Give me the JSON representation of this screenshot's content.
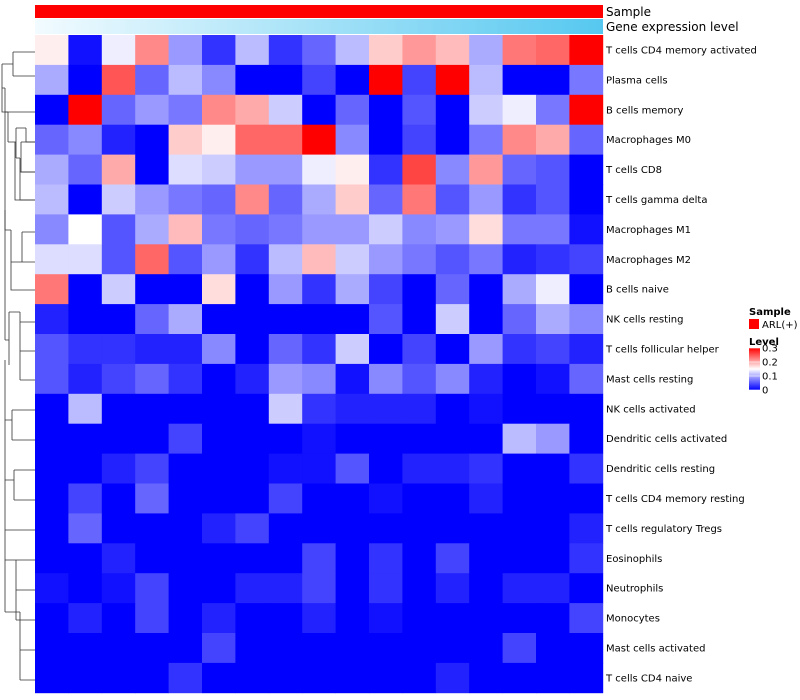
{
  "chart_data": {
    "type": "heatmap",
    "annotations": {
      "sample_label": "Sample",
      "expression_label": "Gene expression level",
      "sample_color": "#ff0000",
      "expression_gradient": [
        "#f2fbff",
        "#56c8f0"
      ]
    },
    "rows": [
      "T cells CD4 memory activated",
      "Plasma cells",
      "B cells memory",
      "Macrophages M0",
      "T cells CD8",
      "T cells gamma delta",
      "Macrophages M1",
      "Macrophages M2",
      "B cells naive",
      "NK cells resting",
      "T cells follicular helper",
      "Mast cells resting",
      "NK cells activated",
      "Dendritic cells activated",
      "Dendritic cells resting",
      "T cells CD4 memory resting",
      "T cells regulatory  Tregs",
      "Eosinophils",
      "Neutrophils",
      "Monocytes",
      "Mast cells activated",
      "T cells CD4 naive"
    ],
    "values": [
      [
        0.16,
        0.01,
        0.14,
        0.22,
        0.09,
        0.03,
        0.11,
        0.03,
        0.06,
        0.11,
        0.18,
        0.21,
        0.19,
        0.1,
        0.23,
        0.24,
        0.3
      ],
      [
        0.1,
        0.0,
        0.25,
        0.06,
        0.11,
        0.08,
        0.0,
        0.0,
        0.04,
        0.0,
        0.3,
        0.04,
        0.3,
        0.11,
        0.0,
        0.0,
        0.07
      ],
      [
        0.0,
        0.3,
        0.06,
        0.09,
        0.07,
        0.22,
        0.2,
        0.12,
        0.0,
        0.06,
        0.0,
        0.05,
        0.0,
        0.12,
        0.14,
        0.07,
        0.3
      ],
      [
        0.06,
        0.08,
        0.02,
        0.0,
        0.18,
        0.16,
        0.24,
        0.24,
        0.3,
        0.08,
        0.0,
        0.04,
        0.0,
        0.07,
        0.22,
        0.2,
        0.06
      ],
      [
        0.1,
        0.06,
        0.2,
        0.0,
        0.13,
        0.12,
        0.09,
        0.09,
        0.14,
        0.16,
        0.03,
        0.26,
        0.08,
        0.21,
        0.06,
        0.05,
        0.0
      ],
      [
        0.11,
        0.0,
        0.12,
        0.09,
        0.07,
        0.06,
        0.22,
        0.06,
        0.1,
        0.18,
        0.06,
        0.23,
        0.05,
        0.09,
        0.03,
        0.05,
        0.0
      ],
      [
        0.08,
        0.15,
        0.05,
        0.1,
        0.19,
        0.07,
        0.06,
        0.07,
        0.09,
        0.09,
        0.12,
        0.08,
        0.09,
        0.17,
        0.07,
        0.07,
        0.01
      ],
      [
        0.13,
        0.13,
        0.05,
        0.24,
        0.05,
        0.09,
        0.03,
        0.11,
        0.19,
        0.12,
        0.09,
        0.07,
        0.05,
        0.07,
        0.02,
        0.03,
        0.04
      ],
      [
        0.23,
        0.0,
        0.12,
        0.0,
        0.0,
        0.17,
        0.0,
        0.09,
        0.03,
        0.1,
        0.04,
        0.0,
        0.06,
        0.0,
        0.1,
        0.14,
        0.0
      ],
      [
        0.02,
        0.0,
        0.0,
        0.06,
        0.1,
        0.0,
        0.0,
        0.0,
        0.0,
        0.0,
        0.05,
        0.0,
        0.12,
        0.0,
        0.06,
        0.1,
        0.08
      ],
      [
        0.05,
        0.03,
        0.03,
        0.02,
        0.02,
        0.08,
        0.0,
        0.06,
        0.03,
        0.12,
        0.0,
        0.04,
        0.0,
        0.09,
        0.03,
        0.04,
        0.02
      ],
      [
        0.05,
        0.02,
        0.04,
        0.06,
        0.03,
        0.0,
        0.02,
        0.09,
        0.08,
        0.01,
        0.08,
        0.05,
        0.08,
        0.02,
        0.0,
        0.01,
        0.06
      ],
      [
        0.0,
        0.11,
        0.0,
        0.0,
        0.0,
        0.0,
        0.0,
        0.12,
        0.03,
        0.02,
        0.02,
        0.02,
        0.0,
        0.01,
        0.0,
        0.0,
        0.0
      ],
      [
        0.0,
        0.0,
        0.0,
        0.0,
        0.04,
        0.0,
        0.0,
        0.0,
        0.01,
        0.0,
        0.0,
        0.0,
        0.0,
        0.0,
        0.11,
        0.09,
        0.0
      ],
      [
        0.0,
        0.0,
        0.02,
        0.04,
        0.0,
        0.0,
        0.0,
        0.01,
        0.01,
        0.05,
        0.0,
        0.02,
        0.02,
        0.03,
        0.0,
        0.0,
        0.03
      ],
      [
        0.0,
        0.04,
        0.0,
        0.06,
        0.0,
        0.0,
        0.0,
        0.04,
        0.0,
        0.0,
        0.01,
        0.0,
        0.0,
        0.02,
        0.0,
        0.0,
        0.0
      ],
      [
        0.0,
        0.06,
        0.0,
        0.0,
        0.0,
        0.02,
        0.04,
        0.0,
        0.0,
        0.0,
        0.0,
        0.0,
        0.0,
        0.0,
        0.0,
        0.0,
        0.02
      ],
      [
        0.0,
        0.0,
        0.02,
        0.0,
        0.0,
        0.0,
        0.0,
        0.0,
        0.04,
        0.0,
        0.03,
        0.0,
        0.04,
        0.0,
        0.0,
        0.0,
        0.03
      ],
      [
        0.01,
        0.0,
        0.01,
        0.04,
        0.0,
        0.0,
        0.02,
        0.02,
        0.04,
        0.0,
        0.03,
        0.0,
        0.02,
        0.0,
        0.02,
        0.02,
        0.0
      ],
      [
        0.0,
        0.02,
        0.0,
        0.04,
        0.0,
        0.02,
        0.0,
        0.0,
        0.02,
        0.0,
        0.01,
        0.0,
        0.0,
        0.0,
        0.0,
        0.0,
        0.04
      ],
      [
        0.0,
        0.0,
        0.0,
        0.0,
        0.0,
        0.04,
        0.0,
        0.0,
        0.0,
        0.0,
        0.0,
        0.0,
        0.0,
        0.0,
        0.04,
        0.0,
        0.0
      ],
      [
        0.0,
        0.0,
        0.0,
        0.0,
        0.03,
        0.0,
        0.0,
        0.0,
        0.0,
        0.0,
        0.0,
        0.0,
        0.02,
        0.0,
        0.0,
        0.0,
        0.0
      ]
    ],
    "color_scale": {
      "min": 0,
      "max": 0.3,
      "colors": [
        "#0000ff",
        "#ffffff",
        "#ff0000"
      ]
    },
    "legend": {
      "sample_title": "Sample",
      "sample_item": "ARL(+)",
      "level_title": "Level",
      "ticks": [
        {
          "value": 0.3,
          "label": "0.3"
        },
        {
          "value": 0.2,
          "label": "0.2"
        },
        {
          "value": 0.1,
          "label": "0.1"
        },
        {
          "value": 0,
          "label": "0"
        }
      ]
    },
    "dendrogram": "row clustering shown on left"
  }
}
